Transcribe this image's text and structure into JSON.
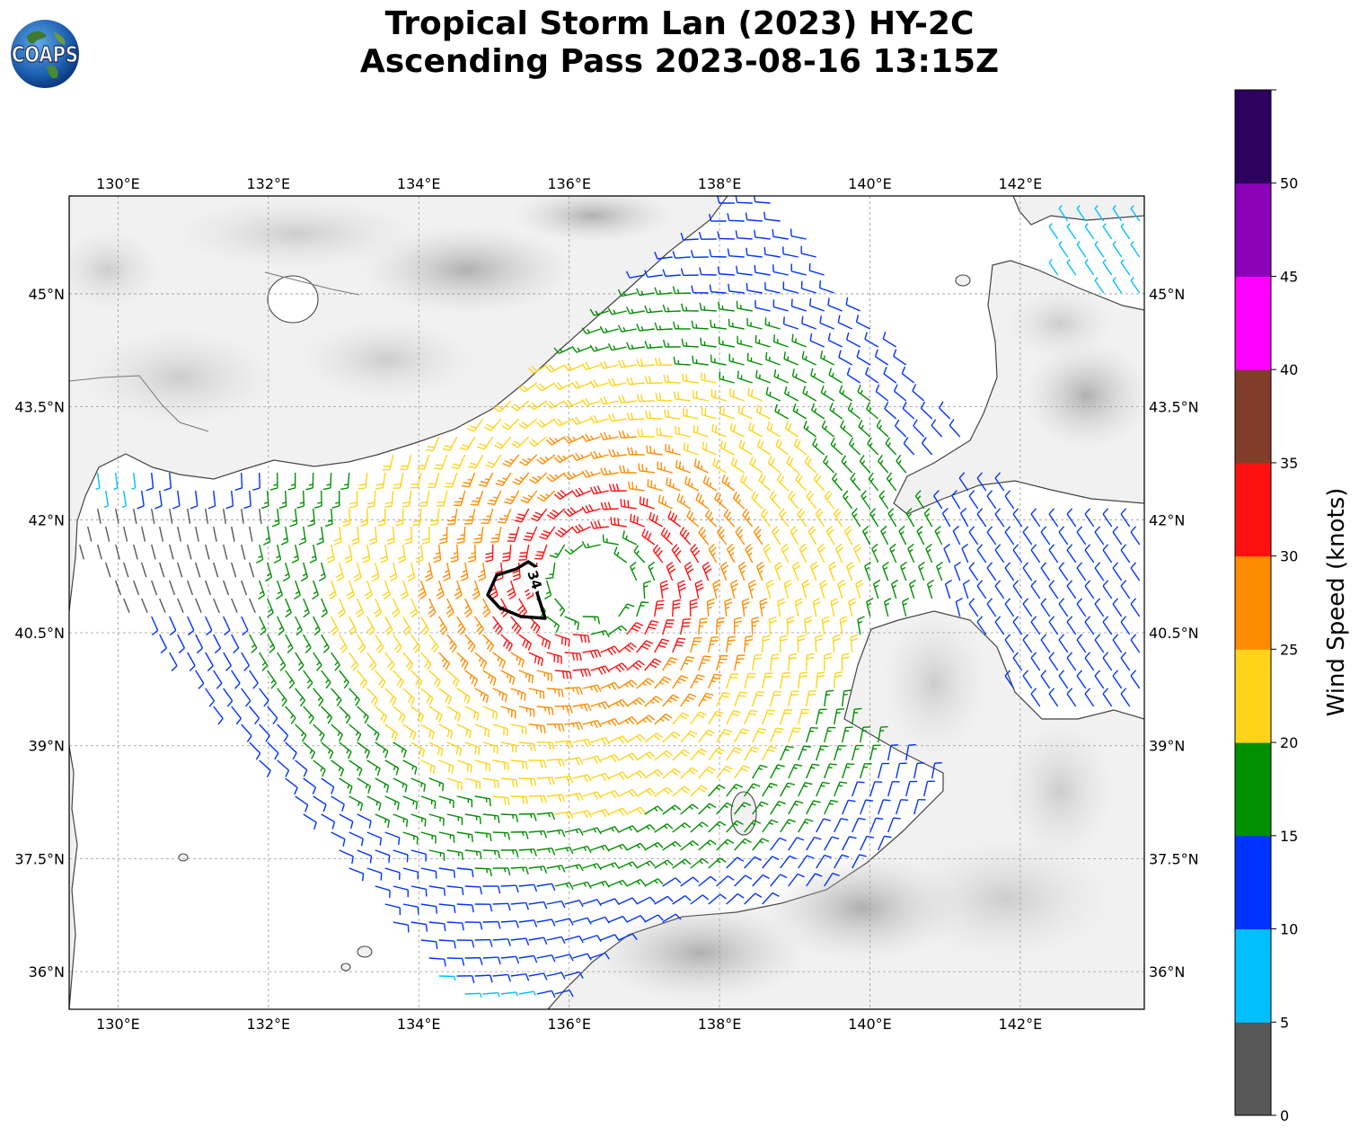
{
  "header": {
    "title_line1": "Tropical Storm Lan (2023) HY-2C",
    "title_line2": "Ascending Pass 2023-08-16 13:15Z",
    "logo_text": "COAPS"
  },
  "map": {
    "lon_labels": [
      "130°E",
      "132°E",
      "134°E",
      "136°E",
      "138°E",
      "140°E",
      "142°E"
    ],
    "lon_values": [
      130,
      132,
      134,
      136,
      138,
      140,
      142
    ],
    "lat_labels": [
      "45°N",
      "43.5°N",
      "42°N",
      "40.5°N",
      "39°N",
      "37.5°N",
      "36°N"
    ],
    "lat_values": [
      45,
      43.5,
      42,
      40.5,
      39,
      37.5,
      36
    ],
    "lon_range": [
      129.35,
      143.65
    ],
    "lat_range": [
      35.5,
      46.3
    ],
    "storm_center": {
      "lon": 136.35,
      "lat": 41.15
    },
    "contour_label": "34"
  },
  "colorbar": {
    "label": "Wind Speed (knots)",
    "tick_labels": [
      "0",
      "5",
      "10",
      "15",
      "20",
      "25",
      "30",
      "35",
      "40",
      "45",
      "50"
    ],
    "bins": [
      {
        "min": 0,
        "max": 5,
        "color": "#575757"
      },
      {
        "min": 5,
        "max": 10,
        "color": "#00bfff"
      },
      {
        "min": 10,
        "max": 15,
        "color": "#0033ff"
      },
      {
        "min": 15,
        "max": 20,
        "color": "#008f00"
      },
      {
        "min": 20,
        "max": 25,
        "color": "#ffd31a"
      },
      {
        "min": 25,
        "max": 30,
        "color": "#ff8c00"
      },
      {
        "min": 30,
        "max": 35,
        "color": "#ff1010"
      },
      {
        "min": 35,
        "max": 40,
        "color": "#803d2a"
      },
      {
        "min": 40,
        "max": 45,
        "color": "#ff00ff"
      },
      {
        "min": 45,
        "max": 50,
        "color": "#8b00b8"
      },
      {
        "min": 50,
        "max": 55,
        "color": "#2d005e"
      }
    ]
  }
}
